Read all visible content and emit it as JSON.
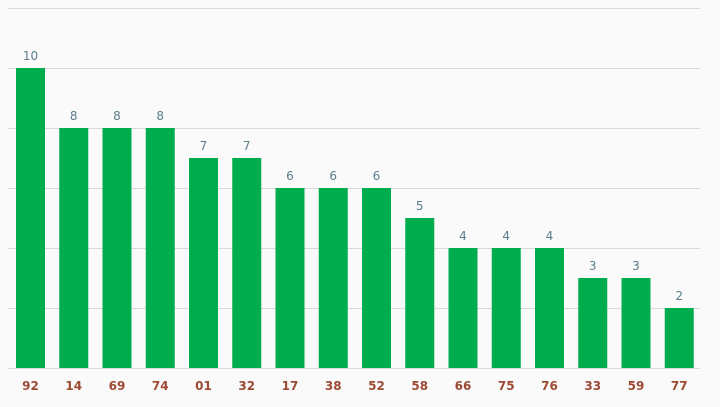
{
  "colors": {
    "bar": "#00ad4e",
    "value_label": "#5a7d8c",
    "tick_label": "#9c4a33",
    "grid": "#d9d9d9",
    "background": "#fafafa"
  },
  "chart_data": {
    "type": "bar",
    "categories": [
      "92",
      "14",
      "69",
      "74",
      "01",
      "32",
      "17",
      "38",
      "52",
      "58",
      "66",
      "75",
      "76",
      "33",
      "59",
      "77"
    ],
    "values": [
      10,
      8,
      8,
      8,
      7,
      7,
      6,
      6,
      6,
      5,
      4,
      4,
      4,
      3,
      3,
      2
    ],
    "data_labels": [
      "10",
      "8",
      "8",
      "8",
      "7",
      "7",
      "6",
      "6",
      "6",
      "5",
      "4",
      "4",
      "4",
      "3",
      "3",
      "2"
    ],
    "title": "",
    "xlabel": "",
    "ylabel": "",
    "ylim": [
      0,
      12
    ],
    "y_grid_step": 2,
    "grid": true,
    "legend": "none"
  }
}
